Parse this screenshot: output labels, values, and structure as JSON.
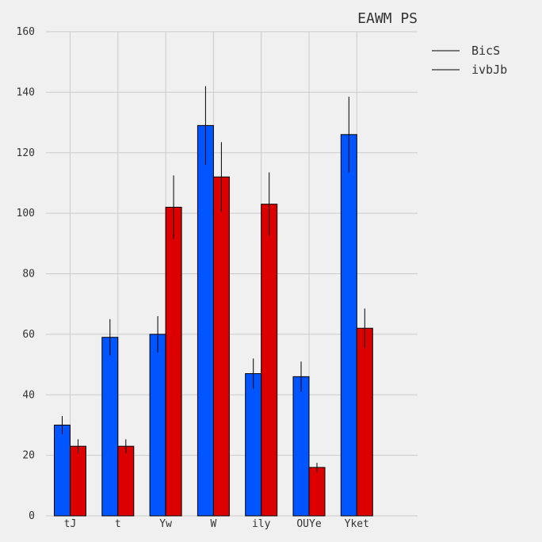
{
  "chart_data": {
    "type": "bar",
    "title": "EAWM PS",
    "xlabel": "",
    "ylabel": "",
    "categories": [
      "tJ",
      "t",
      "Yw",
      "W",
      "ily",
      "OUYe",
      "Yket"
    ],
    "series": [
      {
        "name": "BicS",
        "color": "#0055ff",
        "values": [
          30,
          59,
          60,
          129,
          47,
          46,
          126
        ],
        "errors": [
          3,
          6,
          6,
          13,
          5,
          5,
          12.5
        ]
      },
      {
        "name": "ivbJb",
        "color": "#dd0000",
        "values": [
          23,
          23,
          102,
          112,
          103,
          16,
          62
        ],
        "errors": [
          2.3,
          2.3,
          10.5,
          11.5,
          10.5,
          1.5,
          6.5
        ]
      }
    ],
    "ylim": [
      0,
      160
    ],
    "yticks": [
      0,
      20,
      40,
      60,
      80,
      100,
      120,
      140,
      160
    ],
    "grid": true,
    "legend_position": "top-right-outside"
  }
}
